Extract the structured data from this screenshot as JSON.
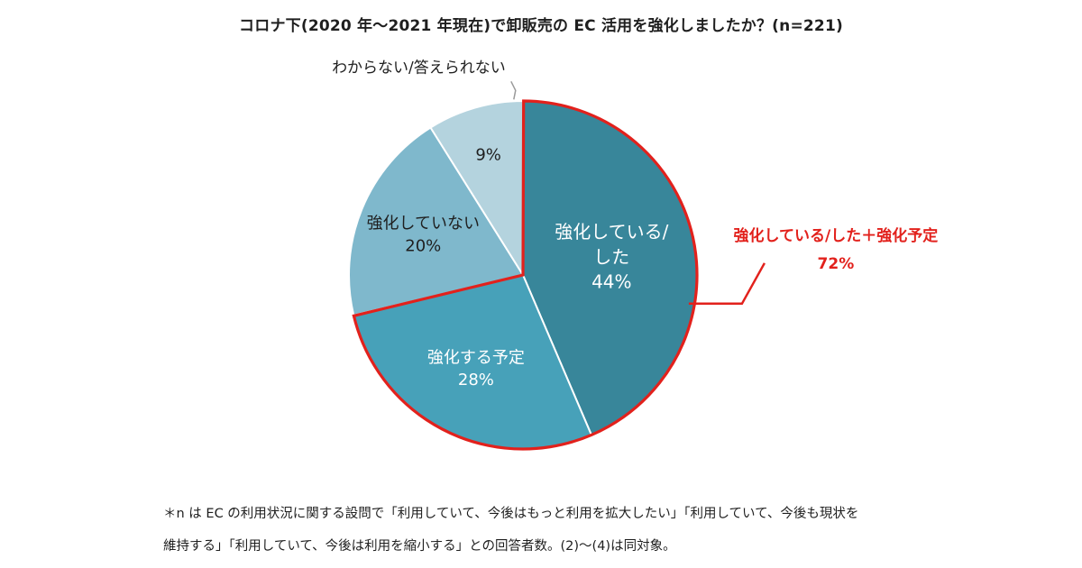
{
  "colors": {
    "slice_0": "#38869a",
    "slice_1": "#47a1b9",
    "slice_2": "#7fb8cc",
    "slice_3": "#b4d3de",
    "highlight": "#e2211c",
    "leader_gray": "#9a9a9a",
    "text_dark": "#1f1f1f",
    "text_white": "#ffffff"
  },
  "chart_data": {
    "type": "pie",
    "title": "コロナ下(2020 年〜2021 年現在)で卸販売の EC 活用を強化しましたか？(n=221)",
    "slices": [
      {
        "label_lines": [
          "強化している/",
          "した"
        ],
        "value": 44,
        "value_label": "44%"
      },
      {
        "label_lines": [
          "強化する予定"
        ],
        "value": 28,
        "value_label": "28%"
      },
      {
        "label_lines": [
          "強化していない"
        ],
        "value": 20,
        "value_label": "20%"
      },
      {
        "label_lines": [
          "わからない/答えられない"
        ],
        "value": 9,
        "value_label": "9%"
      }
    ],
    "highlight_annotation": {
      "label": "強化している/した＋強化予定",
      "value": 72,
      "value_label": "72%",
      "covers_slices": [
        0,
        1
      ]
    }
  },
  "footnote": {
    "line1": "＊n は EC の利用状況に関する設問で「利用していて、今後はもっと利用を拡大したい」「利用していて、今後も現状を",
    "line2": "維持する」「利用していて、今後は利用を縮小する」との回答者数。(2)〜(4)は同対象。"
  }
}
